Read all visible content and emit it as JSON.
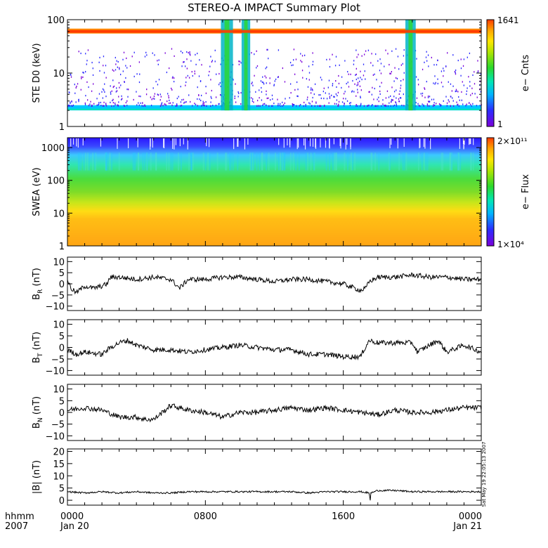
{
  "title": "STEREO-A IMPACT Summary Plot",
  "timestamp": "Sat May 19 22:05:13 2007",
  "time_axis": {
    "label_top": "hhmm",
    "label_bottom": "2007",
    "ticks": [
      {
        "major": "0000",
        "minor": "Jan 20"
      },
      {
        "major": "0800",
        "minor": ""
      },
      {
        "major": "1600",
        "minor": ""
      },
      {
        "major": "0000",
        "minor": "Jan 21"
      }
    ]
  },
  "colors": {
    "trace": "#000000",
    "spectrum": [
      "#7a00d9",
      "#2c2cff",
      "#00b4ff",
      "#00e6b4",
      "#2bd92b",
      "#b4e600",
      "#ffe600",
      "#ffa500",
      "#ff3c00"
    ]
  },
  "chart_data": [
    {
      "type": "heatmap",
      "panel": "ste",
      "ylabel": "STE D0 (keV)",
      "yscale": "log",
      "ylim": [
        1,
        100
      ],
      "yticks": [
        "1",
        "10",
        "100"
      ],
      "colorbar": {
        "label": "e− Cnts",
        "max_label": "1641",
        "min_label": "1"
      },
      "features": {
        "persistent_band_keV": [
          55,
          68
        ],
        "low_energy_band_keV": [
          2,
          2.5
        ],
        "bursts_hour": [
          [
            8.9,
            9.6
          ],
          [
            10.1,
            10.6
          ],
          [
            19.6,
            20.2
          ]
        ]
      }
    },
    {
      "type": "heatmap",
      "panel": "swea",
      "ylabel": "SWEA (eV)",
      "yscale": "log",
      "ylim": [
        1,
        2000
      ],
      "yticks": [
        "1",
        "10",
        "100",
        "1000"
      ],
      "colorbar": {
        "label": "e− Flux",
        "max_label": "2×10¹¹",
        "min_label": "1×10⁴"
      }
    },
    {
      "type": "line",
      "panel": "br",
      "ylabel": "B",
      "ysub": "R",
      "yunit": "(nT)",
      "ylim": [
        -12,
        12
      ],
      "yticks": [
        "10",
        "5",
        "0",
        "−5",
        "−10"
      ],
      "x_hours": [
        0,
        0.2,
        0.5,
        1,
        1.5,
        2,
        2.3,
        2.5,
        3,
        4,
        5,
        6,
        6.5,
        7,
        8,
        9,
        10,
        11,
        12,
        13,
        14,
        15,
        16,
        17,
        17.3,
        17.5,
        18,
        19,
        20,
        21,
        22,
        23,
        24
      ],
      "values": [
        2,
        -2,
        -4,
        -1,
        -2,
        -1,
        0,
        3,
        3,
        2,
        3,
        2,
        -2,
        2,
        2,
        3,
        3,
        2,
        1,
        2,
        2,
        1,
        0,
        -3,
        -2,
        1,
        3,
        3,
        4,
        3,
        3,
        2,
        2
      ]
    },
    {
      "type": "line",
      "panel": "bt",
      "ylabel": "B",
      "ysub": "T",
      "yunit": "(nT)",
      "ylim": [
        -12,
        12
      ],
      "yticks": [
        "10",
        "5",
        "0",
        "−5",
        "−10"
      ],
      "x_hours": [
        0,
        0.5,
        1,
        2,
        2.5,
        3,
        3.5,
        4,
        5,
        6,
        7,
        8,
        9,
        10,
        11,
        12,
        13,
        14,
        15,
        16,
        17,
        17.2,
        17.5,
        18,
        19,
        20,
        20.3,
        21,
        21.5,
        22,
        23,
        24
      ],
      "values": [
        -1,
        -3,
        -2,
        -3,
        0,
        2,
        3,
        1,
        -1,
        -1,
        -2,
        -1,
        0,
        1,
        0,
        -1,
        -1,
        -3,
        -3,
        -4,
        -4,
        -1,
        3,
        2,
        2,
        2,
        -2,
        1,
        3,
        -2,
        1,
        -2
      ]
    },
    {
      "type": "line",
      "panel": "bn",
      "ylabel": "B",
      "ysub": "N",
      "yunit": "(nT)",
      "ylim": [
        -12,
        12
      ],
      "yticks": [
        "10",
        "5",
        "0",
        "−5",
        "−10"
      ],
      "x_hours": [
        0,
        1,
        2,
        3,
        4,
        4.5,
        5,
        5.5,
        6,
        7,
        8,
        9,
        10,
        11,
        12,
        13,
        14,
        15,
        16,
        17,
        18,
        19,
        20,
        21,
        22,
        23,
        24
      ],
      "values": [
        1,
        2,
        1,
        -2,
        -2,
        -3,
        -3,
        0,
        3,
        1,
        0,
        -2,
        0,
        0,
        1,
        2,
        1,
        2,
        1,
        0,
        -1,
        1,
        0,
        0,
        1,
        2,
        2
      ]
    },
    {
      "type": "line",
      "panel": "bmag",
      "ylabel": "|B| (nT)",
      "ylim": [
        -2,
        21
      ],
      "yticks": [
        "20",
        "15",
        "10",
        "5",
        "0"
      ],
      "x_hours": [
        0,
        1,
        2,
        3,
        4,
        5,
        6,
        7,
        8,
        9,
        10,
        11,
        12,
        13,
        14,
        15,
        16,
        17,
        17.5,
        17.55,
        17.6,
        18,
        19,
        20,
        21,
        22,
        23,
        24
      ],
      "values": [
        3.5,
        3,
        3.5,
        3,
        3.5,
        3,
        3,
        3.5,
        3.5,
        3.5,
        3.5,
        3.5,
        3.5,
        3.5,
        3,
        3.5,
        3.5,
        3.5,
        3,
        -0.5,
        3,
        4,
        4,
        3.5,
        3.5,
        3.5,
        3.5,
        3.5
      ]
    }
  ]
}
